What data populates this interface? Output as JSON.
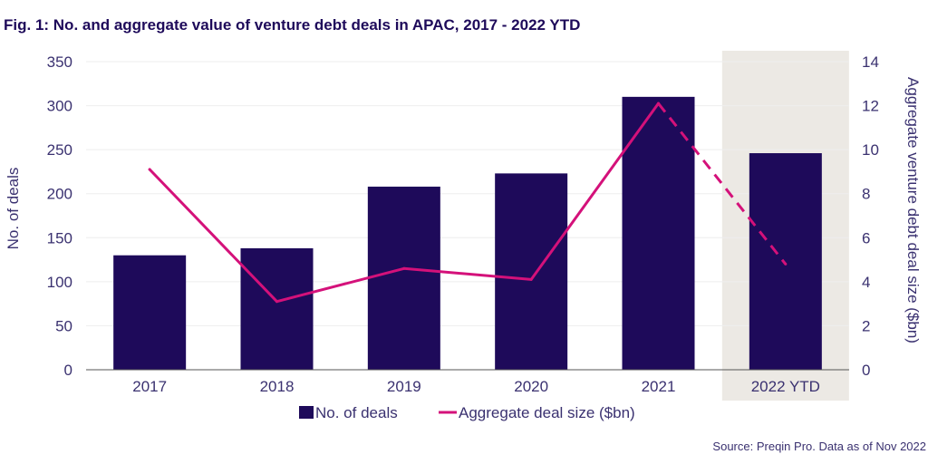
{
  "colors": {
    "bar": "#1e0a5a",
    "line": "#d4117a",
    "highlight_bg": "#ece9e4",
    "grid": "#eeeeee",
    "axis": "#3a3170",
    "text": "#3a3170"
  },
  "chart_data": {
    "type": "bar",
    "title": "Fig. 1: No. and aggregate value of venture debt deals in APAC, 2017 - 2022 YTD",
    "categories": [
      "2017",
      "2018",
      "2019",
      "2020",
      "2021",
      "2022 YTD"
    ],
    "highlight_category": "2022 YTD",
    "series": [
      {
        "name": "No. of deals",
        "type": "bar",
        "axis": "left",
        "values": [
          130,
          138,
          208,
          223,
          310,
          246
        ]
      },
      {
        "name": "Aggregate deal size ($bn)",
        "type": "line",
        "axis": "right",
        "values": [
          9.1,
          3.1,
          4.6,
          4.1,
          12.1,
          4.8
        ],
        "dashed_from_index": 4
      }
    ],
    "ylabel": "No. of deals",
    "ylim": [
      0,
      350
    ],
    "yticks": [
      "0",
      "50",
      "100",
      "150",
      "200",
      "250",
      "300",
      "350"
    ],
    "y2label": "Aggregate venture debt deal size ($bn)",
    "y2lim": [
      0,
      14
    ],
    "y2ticks": [
      "0",
      "2",
      "4",
      "6",
      "8",
      "10",
      "12",
      "14"
    ],
    "legend": {
      "position": "bottom-center",
      "items": [
        "No. of deals",
        "Aggregate deal size ($bn)"
      ]
    },
    "grid": true,
    "source": "Source: Preqin Pro. Data as of Nov 2022"
  }
}
